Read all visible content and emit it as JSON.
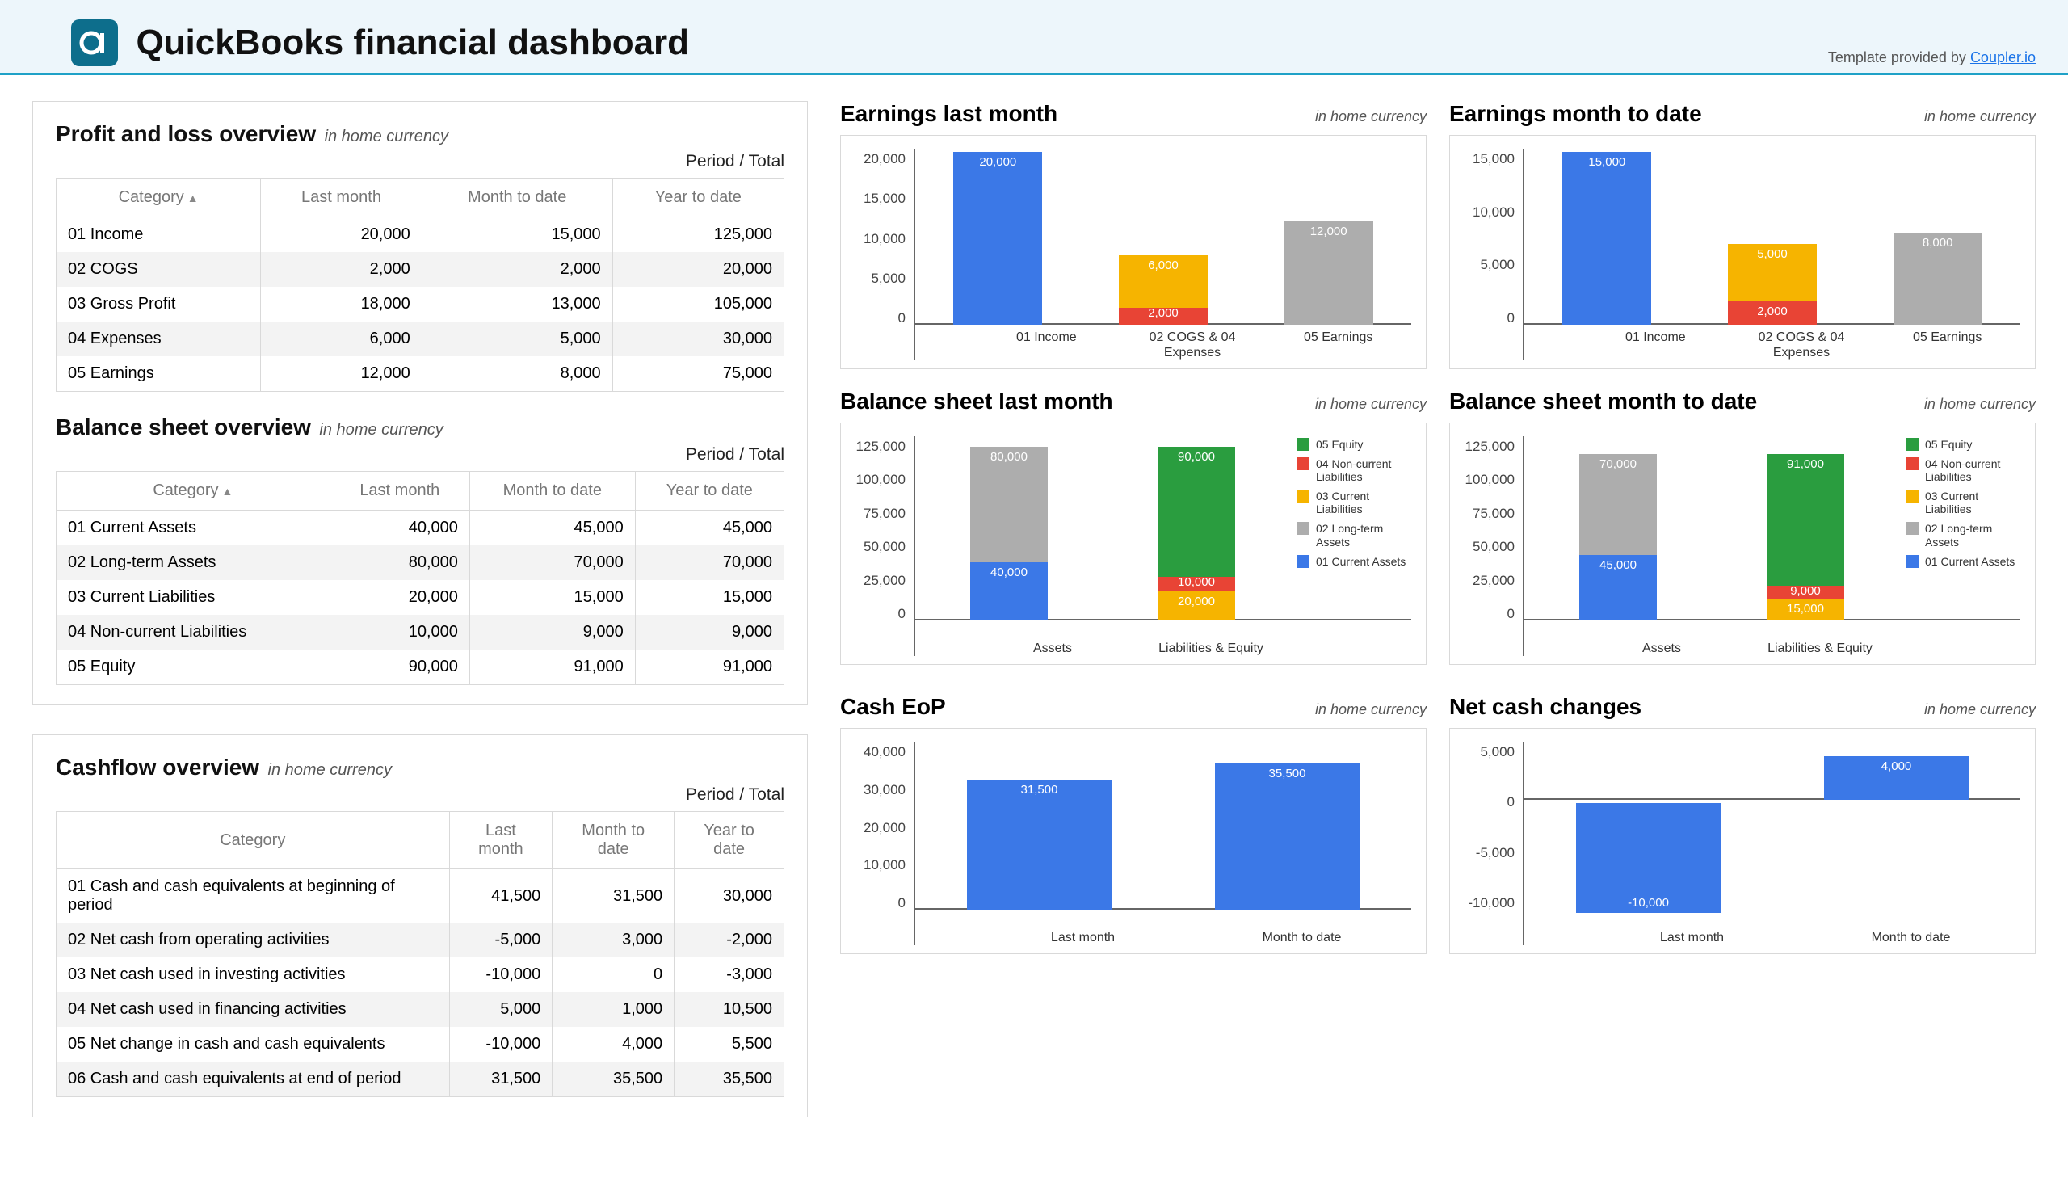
{
  "header": {
    "title": "QuickBooks financial dashboard",
    "credit_prefix": "Template provided by ",
    "credit_link": "Coupler.io"
  },
  "colors": {
    "blue": "#3b78e7",
    "red": "#e84435",
    "yellow": "#f6b400",
    "grey": "#adadad",
    "green": "#2a9d3f",
    "axis": "#666666",
    "border": "#d9d9d9"
  },
  "common": {
    "in_home_currency": "in home currency",
    "period_total": "Period / Total",
    "headers": [
      "Category",
      "Last month",
      "Month to date",
      "Year to date"
    ]
  },
  "pl_table": {
    "title": "Profit and loss overview",
    "rows": [
      {
        "c": "01 Income",
        "lm": "20,000",
        "mtd": "15,000",
        "ytd": "125,000"
      },
      {
        "c": "02 COGS",
        "lm": "2,000",
        "mtd": "2,000",
        "ytd": "20,000"
      },
      {
        "c": "03 Gross Profit",
        "lm": "18,000",
        "mtd": "13,000",
        "ytd": "105,000"
      },
      {
        "c": "04 Expenses",
        "lm": "6,000",
        "mtd": "5,000",
        "ytd": "30,000"
      },
      {
        "c": "05 Earnings",
        "lm": "12,000",
        "mtd": "8,000",
        "ytd": "75,000"
      }
    ]
  },
  "bs_table": {
    "title": "Balance sheet overview",
    "rows": [
      {
        "c": "01 Current Assets",
        "lm": "40,000",
        "mtd": "45,000",
        "ytd": "45,000"
      },
      {
        "c": "02 Long-term Assets",
        "lm": "80,000",
        "mtd": "70,000",
        "ytd": "70,000"
      },
      {
        "c": "03 Current Liabilities",
        "lm": "20,000",
        "mtd": "15,000",
        "ytd": "15,000"
      },
      {
        "c": "04 Non-current Liabilities",
        "lm": "10,000",
        "mtd": "9,000",
        "ytd": "9,000"
      },
      {
        "c": "05 Equity",
        "lm": "90,000",
        "mtd": "91,000",
        "ytd": "91,000"
      }
    ]
  },
  "cf_table": {
    "title": "Cashflow overview",
    "rows": [
      {
        "c": "01 Cash and cash equivalents at beginning of period",
        "lm": "41,500",
        "mtd": "31,500",
        "ytd": "30,000"
      },
      {
        "c": "02 Net cash from operating activities",
        "lm": "-5,000",
        "mtd": "3,000",
        "ytd": "-2,000"
      },
      {
        "c": "03 Net cash used in investing activities",
        "lm": "-10,000",
        "mtd": "0",
        "ytd": "-3,000"
      },
      {
        "c": "04 Net cash used in financing activities",
        "lm": "5,000",
        "mtd": "1,000",
        "ytd": "10,500"
      },
      {
        "c": "05 Net change in cash and cash equivalents",
        "lm": "-10,000",
        "mtd": "4,000",
        "ytd": "5,500"
      },
      {
        "c": "06 Cash and cash equivalents at end of period",
        "lm": "31,500",
        "mtd": "35,500",
        "ytd": "35,500"
      }
    ]
  },
  "earnings_lm": {
    "title": "Earnings last month",
    "ymax": 20000,
    "ytick": 5000,
    "yticks": [
      "0",
      "5,000",
      "10,000",
      "15,000",
      "20,000"
    ],
    "categories": [
      "01 Income",
      "02 COGS & 04\nExpenses",
      "05 Earnings"
    ],
    "bars": [
      {
        "segs": [
          {
            "v": 20000,
            "color": "blue",
            "label": "20,000"
          }
        ]
      },
      {
        "segs": [
          {
            "v": 2000,
            "color": "red",
            "label": "2,000"
          },
          {
            "v": 6000,
            "color": "yellow",
            "label": "6,000"
          }
        ]
      },
      {
        "segs": [
          {
            "v": 12000,
            "color": "grey",
            "label": "12,000"
          }
        ]
      }
    ]
  },
  "earnings_mtd": {
    "title": "Earnings month to date",
    "ymax": 15000,
    "ytick": 5000,
    "yticks": [
      "0",
      "5,000",
      "10,000",
      "15,000"
    ],
    "categories": [
      "01 Income",
      "02 COGS & 04\nExpenses",
      "05 Earnings"
    ],
    "bars": [
      {
        "segs": [
          {
            "v": 15000,
            "color": "blue",
            "label": "15,000"
          }
        ]
      },
      {
        "segs": [
          {
            "v": 2000,
            "color": "red",
            "label": "2,000"
          },
          {
            "v": 5000,
            "color": "yellow",
            "label": "5,000"
          }
        ]
      },
      {
        "segs": [
          {
            "v": 8000,
            "color": "grey",
            "label": "8,000"
          }
        ]
      }
    ]
  },
  "bs_lm": {
    "title": "Balance sheet last month",
    "ymax": 125000,
    "ytick": 25000,
    "yticks": [
      "0",
      "25,000",
      "50,000",
      "75,000",
      "100,000",
      "125,000"
    ],
    "categories": [
      "Assets",
      "Liabilities & Equity"
    ],
    "legend": [
      {
        "color": "green",
        "t": "05 Equity"
      },
      {
        "color": "red",
        "t": "04 Non-current Liabilities"
      },
      {
        "color": "yellow",
        "t": "03 Current Liabilities"
      },
      {
        "color": "grey",
        "t": "02 Long-term Assets"
      },
      {
        "color": "blue",
        "t": "01 Current Assets"
      }
    ],
    "bars": [
      {
        "segs": [
          {
            "v": 40000,
            "color": "blue",
            "label": "40,000"
          },
          {
            "v": 80000,
            "color": "grey",
            "label": "80,000"
          }
        ]
      },
      {
        "segs": [
          {
            "v": 20000,
            "color": "yellow",
            "label": "20,000"
          },
          {
            "v": 10000,
            "color": "red",
            "label": "10,000"
          },
          {
            "v": 90000,
            "color": "green",
            "label": "90,000"
          }
        ]
      }
    ]
  },
  "bs_mtd": {
    "title": "Balance sheet month to date",
    "ymax": 125000,
    "ytick": 25000,
    "yticks": [
      "0",
      "25,000",
      "50,000",
      "75,000",
      "100,000",
      "125,000"
    ],
    "categories": [
      "Assets",
      "Liabilities & Equity"
    ],
    "legend": [
      {
        "color": "green",
        "t": "05 Equity"
      },
      {
        "color": "red",
        "t": "04 Non-current Liabilities"
      },
      {
        "color": "yellow",
        "t": "03 Current Liabilities"
      },
      {
        "color": "grey",
        "t": "02 Long-term Assets"
      },
      {
        "color": "blue",
        "t": "01 Current Assets"
      }
    ],
    "bars": [
      {
        "segs": [
          {
            "v": 45000,
            "color": "blue",
            "label": "45,000"
          },
          {
            "v": 70000,
            "color": "grey",
            "label": "70,000"
          }
        ]
      },
      {
        "segs": [
          {
            "v": 15000,
            "color": "yellow",
            "label": "15,000"
          },
          {
            "v": 9000,
            "color": "red",
            "label": "9,000"
          },
          {
            "v": 91000,
            "color": "green",
            "label": "91,000"
          }
        ]
      }
    ]
  },
  "cash_eop": {
    "title": "Cash EoP",
    "ymax": 40000,
    "ytick": 10000,
    "yticks": [
      "0",
      "10,000",
      "20,000",
      "30,000",
      "40,000"
    ],
    "categories": [
      "Last month",
      "Month to date"
    ],
    "bars": [
      {
        "segs": [
          {
            "v": 31500,
            "color": "blue",
            "label": "31,500"
          }
        ]
      },
      {
        "segs": [
          {
            "v": 35500,
            "color": "blue",
            "label": "35,500"
          }
        ]
      }
    ]
  },
  "net_cash": {
    "title": "Net cash changes",
    "ymin": -10000,
    "ymax": 5000,
    "ytick": 5000,
    "yticks": [
      "-10,000",
      "-5,000",
      "0",
      "5,000"
    ],
    "categories": [
      "Last month",
      "Month to date"
    ],
    "bars": [
      {
        "v": -10000,
        "color": "blue",
        "label": "-10,000"
      },
      {
        "v": 4000,
        "color": "blue",
        "label": "4,000"
      }
    ]
  }
}
